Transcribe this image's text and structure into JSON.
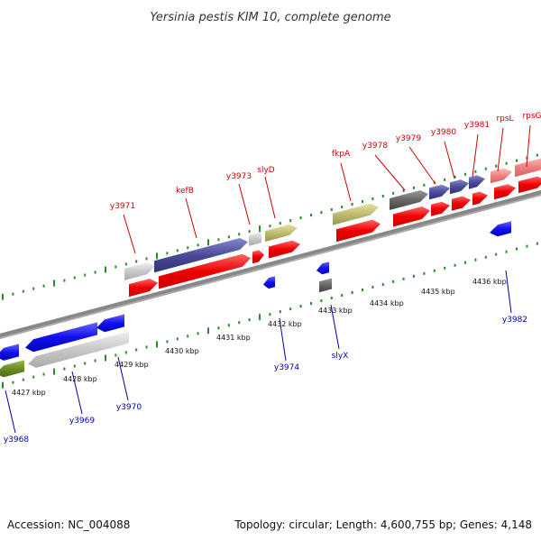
{
  "title": "Yersinia pestis KIM 10, complete genome",
  "footer": {
    "accession": "Accession: NC_004088",
    "stats": "Topology: circular; Length: 4,600,755 bp; Genes: 4,148"
  },
  "colors": {
    "plus_label": "#cc0000",
    "minus_label": "#0000aa",
    "leader_plus": "#cc0000",
    "leader_minus": "#0000aa",
    "tick": "#2a8a2a",
    "backbone": "#888888"
  },
  "kbp_labels": [
    "4427 kbp",
    "4428 kbp",
    "4429 kbp",
    "4430 kbp",
    "4431 kbp",
    "4432 kbp",
    "4433 kbp",
    "4434 kbp",
    "4435 kbp",
    "4436 kbp"
  ],
  "plus_labels": [
    "y3971",
    "kefB",
    "y3973",
    "slyD",
    "fkpA",
    "y3978",
    "y3979",
    "y3980",
    "y3981",
    "rpsL",
    "rpsG"
  ],
  "minus_labels": [
    "y3968",
    "y3969",
    "y3970",
    "y3974",
    "slyX",
    "y3982"
  ]
}
